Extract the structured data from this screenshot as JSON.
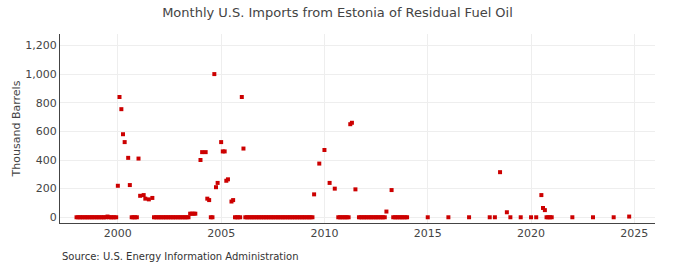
{
  "chart_data": {
    "type": "scatter",
    "title": "Monthly U.S. Imports from Estonia of Residual Fuel Oil",
    "ylabel": "Thousand Barrels",
    "annotations": [
      "Source: U.S. Energy Information Administration"
    ],
    "marker": "square",
    "grid": true,
    "xlim": [
      1997.2,
      2026.0
    ],
    "ylim": [
      -40,
      1280
    ],
    "xticks": [
      2000,
      2005,
      2010,
      2015,
      2020,
      2025
    ],
    "yticks": [
      0,
      200,
      400,
      600,
      800,
      {
        "value": 1000,
        "label": "1,000"
      },
      {
        "value": 1200,
        "label": "1,200"
      }
    ],
    "series": [
      {
        "color": "#cc0000",
        "x": [
          1999.5,
          2000.0,
          2000.08,
          2000.17,
          2000.25,
          2000.33,
          2000.5,
          2000.58,
          2001.0,
          2001.08,
          2001.25,
          2001.33,
          2001.5,
          2001.67,
          2003.5,
          2003.58,
          2003.67,
          2003.75,
          2004.0,
          2004.08,
          2004.25,
          2004.33,
          2004.42,
          2004.67,
          2004.75,
          2004.83,
          2005.0,
          2005.08,
          2005.17,
          2005.25,
          2005.33,
          2005.5,
          2005.58,
          2006.0,
          2006.08,
          2009.5,
          2009.75,
          2010.0,
          2010.25,
          2010.5,
          2011.25,
          2011.33,
          2011.5,
          2013.0,
          2013.25,
          2018.5,
          2018.83,
          2020.5,
          2020.58,
          2020.67,
          2024.75
        ],
        "values": [
          5,
          220,
          840,
          755,
          580,
          525,
          415,
          225,
          410,
          150,
          155,
          130,
          125,
          135,
          25,
          25,
          25,
          25,
          400,
          455,
          455,
          130,
          120,
          1000,
          210,
          240,
          525,
          460,
          460,
          255,
          265,
          110,
          120,
          840,
          480,
          160,
          375,
          470,
          240,
          200,
          650,
          660,
          195,
          40,
          190,
          315,
          35,
          155,
          65,
          50,
          5
        ]
      },
      {
        "color": "#cc0000",
        "x": [
          1998.0,
          1998.08,
          1998.17,
          1998.25,
          1998.33,
          1998.42,
          1998.5,
          1998.58,
          1998.67,
          1998.75,
          1998.83,
          1998.92,
          1999.0,
          1999.08,
          1999.17,
          1999.25,
          1999.33,
          1999.42,
          1999.58,
          1999.67,
          1999.75,
          1999.83,
          1999.92,
          2000.67,
          2000.75,
          2000.83,
          2000.92,
          2001.75,
          2001.83,
          2001.92,
          2002.0,
          2002.08,
          2002.17,
          2002.25,
          2002.33,
          2002.42,
          2002.5,
          2002.58,
          2002.67,
          2002.75,
          2002.83,
          2002.92,
          2003.0,
          2003.08,
          2003.17,
          2003.25,
          2003.33,
          2003.42,
          2004.5,
          2004.58,
          2005.67,
          2005.75,
          2005.83,
          2005.92,
          2006.17,
          2006.25,
          2006.33,
          2006.42,
          2006.5,
          2006.58,
          2006.67,
          2006.75,
          2006.83,
          2006.92,
          2007.0,
          2007.08,
          2007.17,
          2007.25,
          2007.33,
          2007.42,
          2007.5,
          2007.58,
          2007.67,
          2007.75,
          2007.83,
          2007.92,
          2008.0,
          2008.08,
          2008.17,
          2008.25,
          2008.33,
          2008.42,
          2008.5,
          2008.58,
          2008.67,
          2008.75,
          2008.83,
          2008.92,
          2009.0,
          2009.08,
          2009.17,
          2009.25,
          2009.33,
          2009.42,
          2010.67,
          2010.75,
          2010.83,
          2010.92,
          2011.0,
          2011.08,
          2011.17,
          2011.67,
          2011.75,
          2011.83,
          2011.92,
          2012.0,
          2012.08,
          2012.17,
          2012.25,
          2012.33,
          2012.42,
          2012.5,
          2012.58,
          2012.67,
          2012.75,
          2012.83,
          2012.92,
          2013.33,
          2013.42,
          2013.5,
          2013.58,
          2013.67,
          2013.75,
          2013.83,
          2013.92,
          2014.0,
          2015.0,
          2016.0,
          2017.0,
          2018.0,
          2018.25,
          2019.0,
          2019.5,
          2020.0,
          2020.25,
          2020.75,
          2020.83,
          2020.92,
          2021.0,
          2022.0,
          2023.0,
          2024.0
        ],
        "values": [
          0,
          0,
          0,
          0,
          0,
          0,
          0,
          0,
          0,
          0,
          0,
          0,
          0,
          0,
          0,
          0,
          0,
          0,
          0,
          0,
          0,
          0,
          0,
          0,
          0,
          0,
          0,
          0,
          0,
          0,
          0,
          0,
          0,
          0,
          0,
          0,
          0,
          0,
          0,
          0,
          0,
          0,
          0,
          0,
          0,
          0,
          0,
          0,
          0,
          0,
          0,
          0,
          0,
          0,
          0,
          0,
          0,
          0,
          0,
          0,
          0,
          0,
          0,
          0,
          0,
          0,
          0,
          0,
          0,
          0,
          0,
          0,
          0,
          0,
          0,
          0,
          0,
          0,
          0,
          0,
          0,
          0,
          0,
          0,
          0,
          0,
          0,
          0,
          0,
          0,
          0,
          0,
          0,
          0,
          0,
          0,
          0,
          0,
          0,
          0,
          0,
          0,
          0,
          0,
          0,
          0,
          0,
          0,
          0,
          0,
          0,
          0,
          0,
          0,
          0,
          0,
          0,
          0,
          0,
          0,
          0,
          0,
          0,
          0,
          0,
          0,
          0,
          0,
          0,
          0,
          0,
          0,
          0,
          0,
          0,
          0,
          0,
          0,
          0,
          0,
          0,
          0
        ]
      }
    ]
  }
}
